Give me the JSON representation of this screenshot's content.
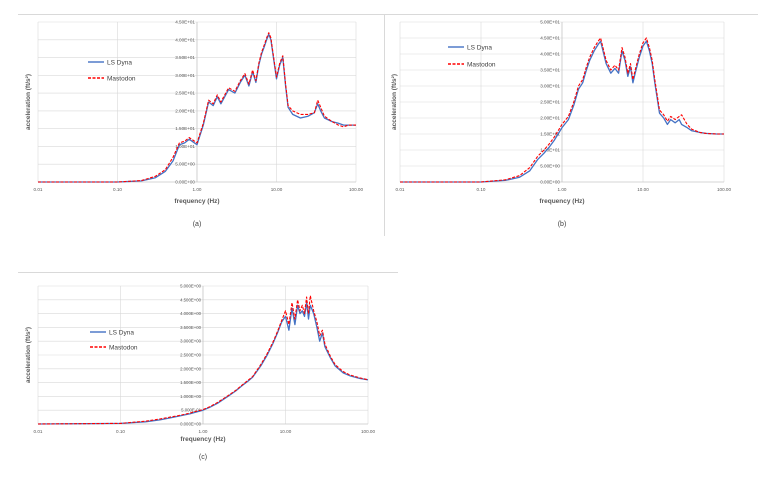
{
  "chart_data": [
    {
      "panel": "(a)",
      "type": "line",
      "xscale": "log",
      "xlim": [
        0.01,
        100
      ],
      "ylim": [
        0,
        45
      ],
      "xticks": [
        "0.01",
        "0.10",
        "1.00",
        "10.00",
        "100.00"
      ],
      "yticks": [
        "0.00E+00",
        "5.00E+00",
        "1.00E+01",
        "1.50E+01",
        "2.00E+01",
        "2.50E+01",
        "3.00E+01",
        "3.50E+01",
        "4.00E+01",
        "4.50E+01"
      ],
      "xlabel": "frequency (Hz)",
      "ylabel": "acceleration (ft/s²)",
      "caption": "(a)",
      "legend_position": "upper-left",
      "series": [
        {
          "name": "LS Dyna",
          "color": "#4472c4",
          "dash": "solid",
          "x": [
            0.01,
            0.1,
            0.2,
            0.3,
            0.4,
            0.5,
            0.6,
            0.7,
            0.8,
            1.0,
            1.2,
            1.4,
            1.6,
            1.8,
            2.0,
            2.5,
            3.0,
            3.5,
            4.0,
            4.5,
            5.0,
            5.5,
            6.0,
            6.5,
            7.0,
            7.5,
            8.0,
            8.5,
            9.0,
            10.0,
            11.0,
            12.0,
            13.0,
            14.0,
            16.0,
            20.0,
            25.0,
            30.0,
            33.0,
            36.0,
            40.0,
            50.0,
            60.0,
            70.0,
            80.0,
            100.0
          ],
          "y": [
            0,
            0,
            0.3,
            1.2,
            3,
            6,
            10.5,
            11,
            12,
            10.5,
            16,
            22.5,
            21.5,
            24,
            22,
            26,
            25,
            28,
            30,
            27,
            31,
            28,
            33,
            36,
            38,
            40,
            41.5,
            40,
            36,
            29,
            33,
            35,
            27,
            21,
            19,
            18,
            18.5,
            19.5,
            22,
            20,
            18,
            17,
            16.5,
            16,
            16,
            16
          ]
        },
        {
          "name": "Mastodon",
          "color": "#ff0000",
          "dash": "dashed",
          "x": [
            0.01,
            0.1,
            0.2,
            0.3,
            0.4,
            0.5,
            0.6,
            0.7,
            0.8,
            1.0,
            1.2,
            1.4,
            1.6,
            1.8,
            2.0,
            2.5,
            3.0,
            3.5,
            4.0,
            4.5,
            5.0,
            5.5,
            6.0,
            6.5,
            7.0,
            7.5,
            8.0,
            8.5,
            9.0,
            10.0,
            11.0,
            12.0,
            13.0,
            14.0,
            16.0,
            20.0,
            25.0,
            30.0,
            33.0,
            36.0,
            40.0,
            50.0,
            60.0,
            70.0,
            80.0,
            100.0
          ],
          "y": [
            0,
            0,
            0.4,
            1.6,
            3.5,
            7,
            11,
            11.5,
            12.5,
            11,
            16.5,
            23,
            22,
            24.5,
            22.5,
            26.5,
            25.5,
            28.5,
            30.5,
            27.5,
            31.5,
            28.5,
            33.5,
            36.5,
            38.5,
            40.5,
            42,
            40.5,
            36.5,
            29.5,
            33.5,
            35.5,
            27.5,
            21.5,
            20,
            19,
            19,
            19.5,
            23,
            21,
            18.5,
            17,
            16,
            15.5,
            16,
            16
          ]
        }
      ]
    },
    {
      "panel": "(b)",
      "type": "line",
      "xscale": "log",
      "xlim": [
        0.01,
        100
      ],
      "ylim": [
        0,
        50
      ],
      "xticks": [
        "0.01",
        "0.10",
        "1.00",
        "10.00",
        "100.00"
      ],
      "yticks": [
        "0.00E+00",
        "5.00E+00",
        "1.00E+01",
        "1.50E+01",
        "2.00E+01",
        "2.50E+01",
        "3.00E+01",
        "3.50E+01",
        "4.00E+01",
        "4.50E+01",
        "5.00E+01"
      ],
      "xlabel": "frequency (Hz)",
      "ylabel": "acceleration (ft/s²)",
      "caption": "(b)",
      "legend_position": "upper-left",
      "series": [
        {
          "name": "LS Dyna",
          "color": "#4472c4",
          "dash": "solid",
          "x": [
            0.01,
            0.1,
            0.2,
            0.3,
            0.4,
            0.5,
            0.6,
            0.7,
            0.8,
            1.0,
            1.2,
            1.4,
            1.6,
            1.8,
            2.0,
            2.2,
            2.5,
            2.8,
            3.0,
            3.5,
            4.0,
            4.5,
            5.0,
            5.5,
            6.0,
            6.5,
            7.0,
            7.5,
            8.0,
            9.0,
            10.0,
            11.0,
            12.0,
            13.0,
            14.0,
            16.0,
            18.0,
            20.0,
            22.0,
            25.0,
            28.0,
            30.0,
            35.0,
            40.0,
            50.0,
            60.0,
            80.0,
            100.0
          ],
          "y": [
            0,
            0,
            0.5,
            1.5,
            3.5,
            7,
            9,
            11,
            13,
            17,
            19.5,
            24,
            29,
            31,
            35,
            38,
            41,
            43,
            44,
            37,
            34,
            35.5,
            34,
            41,
            38,
            33,
            36,
            31,
            34,
            39,
            42.5,
            44,
            41,
            37,
            31,
            21.5,
            20,
            18,
            19.5,
            18.5,
            19.5,
            18,
            17,
            16,
            15.5,
            15.2,
            15,
            15
          ]
        },
        {
          "name": "Mastodon",
          "color": "#ff0000",
          "dash": "dashed",
          "x": [
            0.01,
            0.1,
            0.2,
            0.3,
            0.4,
            0.5,
            0.6,
            0.7,
            0.8,
            1.0,
            1.2,
            1.4,
            1.6,
            1.8,
            2.0,
            2.2,
            2.5,
            2.8,
            3.0,
            3.5,
            4.0,
            4.5,
            5.0,
            5.5,
            6.0,
            6.5,
            7.0,
            7.5,
            8.0,
            9.0,
            10.0,
            11.0,
            12.0,
            13.0,
            14.0,
            16.0,
            18.0,
            20.0,
            22.0,
            25.0,
            28.0,
            30.0,
            35.0,
            40.0,
            50.0,
            60.0,
            80.0,
            100.0
          ],
          "y": [
            0,
            0,
            0.7,
            2,
            4.5,
            8,
            10,
            12,
            14,
            18,
            20.5,
            25,
            30,
            32,
            36,
            39,
            42,
            44,
            45,
            38,
            35,
            36.5,
            35,
            42,
            39,
            34,
            37,
            32,
            35,
            40,
            43.5,
            45,
            42,
            38,
            32,
            22.5,
            21,
            19,
            20.5,
            19.5,
            20.5,
            21,
            18,
            16.5,
            15.5,
            15.2,
            15,
            15
          ]
        }
      ]
    },
    {
      "panel": "(c)",
      "type": "line",
      "xscale": "log",
      "xlim": [
        0.01,
        100
      ],
      "ylim": [
        0,
        5
      ],
      "xticks": [
        "0.01",
        "0.10",
        "1.00",
        "10.00",
        "100.00"
      ],
      "yticks": [
        "0.000E+00",
        "5.000E-01",
        "1.000E+00",
        "1.500E+00",
        "2.000E+00",
        "2.500E+00",
        "3.000E+00",
        "3.500E+00",
        "4.000E+00",
        "4.500E+00",
        "5.000E+00"
      ],
      "xlabel": "frequency (Hz)",
      "ylabel": "acceleration (ft/s²)",
      "caption": "(c)",
      "legend_position": "middle-left",
      "series": [
        {
          "name": "LS Dyna",
          "color": "#4472c4",
          "dash": "solid",
          "x": [
            0.01,
            0.1,
            0.2,
            0.3,
            0.4,
            0.5,
            0.6,
            0.7,
            0.8,
            1.0,
            1.2,
            1.5,
            2.0,
            2.5,
            3.0,
            3.5,
            4.0,
            5.0,
            6.0,
            7.0,
            8.0,
            9.0,
            10.0,
            11.0,
            12.0,
            13.0,
            14.0,
            15.0,
            16.0,
            17.0,
            18.0,
            19.0,
            20.0,
            22.0,
            24.0,
            26.0,
            28.0,
            30.0,
            35.0,
            40.0,
            50.0,
            60.0,
            80.0,
            100.0
          ],
          "y": [
            0,
            0.02,
            0.08,
            0.15,
            0.22,
            0.28,
            0.33,
            0.37,
            0.42,
            0.5,
            0.6,
            0.75,
            1.0,
            1.2,
            1.4,
            1.55,
            1.7,
            2.1,
            2.5,
            2.9,
            3.3,
            3.7,
            3.9,
            3.4,
            4.2,
            3.6,
            4.3,
            4.0,
            4.1,
            3.9,
            4.4,
            3.8,
            4.3,
            4.0,
            3.5,
            3.0,
            3.3,
            2.8,
            2.4,
            2.1,
            1.85,
            1.75,
            1.65,
            1.6
          ]
        },
        {
          "name": "Mastodon",
          "color": "#ff0000",
          "dash": "dashed",
          "x": [
            0.01,
            0.1,
            0.2,
            0.3,
            0.4,
            0.5,
            0.6,
            0.7,
            0.8,
            1.0,
            1.2,
            1.5,
            2.0,
            2.5,
            3.0,
            3.5,
            4.0,
            5.0,
            6.0,
            7.0,
            8.0,
            9.0,
            10.0,
            11.0,
            12.0,
            13.0,
            14.0,
            15.0,
            16.0,
            17.0,
            18.0,
            19.0,
            20.0,
            22.0,
            24.0,
            26.0,
            28.0,
            30.0,
            35.0,
            40.0,
            50.0,
            60.0,
            80.0,
            100.0
          ],
          "y": [
            0,
            0.02,
            0.1,
            0.18,
            0.25,
            0.3,
            0.35,
            0.4,
            0.45,
            0.52,
            0.62,
            0.78,
            1.02,
            1.22,
            1.42,
            1.58,
            1.72,
            2.15,
            2.55,
            2.95,
            3.35,
            3.75,
            4.1,
            3.6,
            4.4,
            3.8,
            4.5,
            4.1,
            4.3,
            4.0,
            4.6,
            4.0,
            4.65,
            4.1,
            3.7,
            3.2,
            3.4,
            2.9,
            2.45,
            2.15,
            1.9,
            1.78,
            1.67,
            1.6
          ]
        }
      ]
    }
  ]
}
